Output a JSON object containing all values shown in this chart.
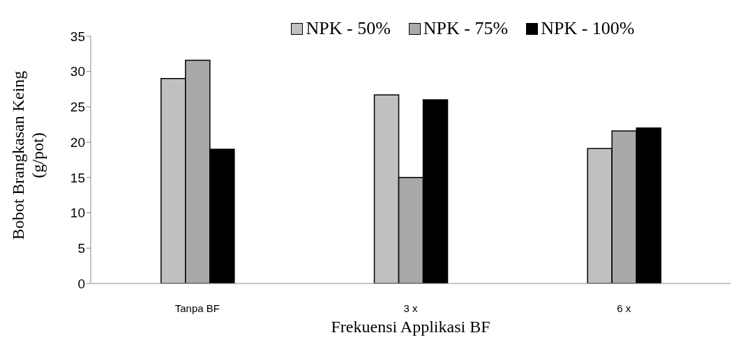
{
  "chart_data": {
    "type": "bar",
    "xlabel": "Frekuensi Applikasi BF",
    "ylabel": "Bobot Brangkasan Keing (g/pot)",
    "categories": [
      "Tanpa BF",
      "3 x",
      "6 x"
    ],
    "series": [
      {
        "name": "NPK - 50%",
        "color": "#c0c0c0",
        "values": [
          29,
          26.7,
          19.1
        ]
      },
      {
        "name": "NPK - 75%",
        "color": "#a9a9a9",
        "values": [
          31.6,
          15,
          21.6
        ]
      },
      {
        "name": "NPK - 100%",
        "color": "#000000",
        "values": [
          19,
          26,
          22
        ]
      }
    ],
    "ylim": [
      0,
      35
    ],
    "yticks": [
      0,
      5,
      10,
      15,
      20,
      25,
      30,
      35
    ],
    "grid": false,
    "legend": "top"
  }
}
